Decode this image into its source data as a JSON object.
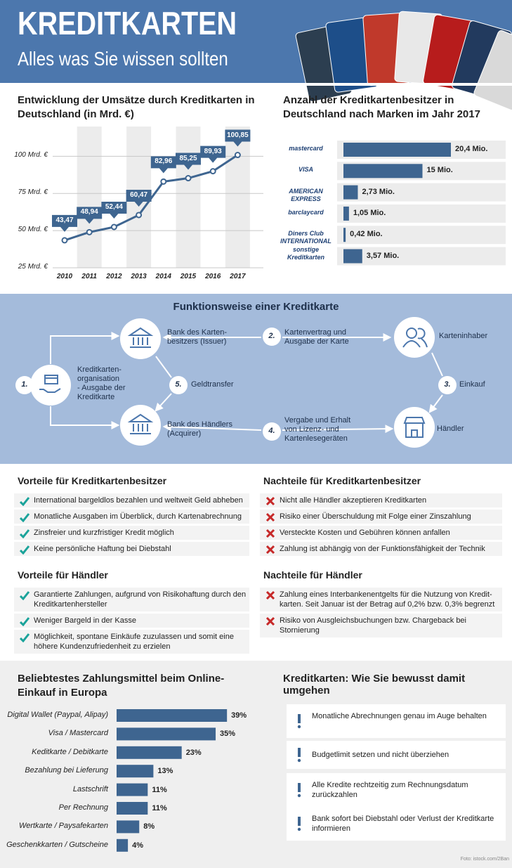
{
  "header": {
    "title": "KREDITKARTEN",
    "subtitle": "Alles was Sie wissen sollten"
  },
  "chart_data": [
    {
      "type": "line",
      "title": "Entwicklung der Umsätze durch Kreditkarten in Deutschland (in Mrd. €)",
      "categories": [
        "2010",
        "2011",
        "2012",
        "2013",
        "2014",
        "2015",
        "2016",
        "2017"
      ],
      "values": [
        43.47,
        48.94,
        52.44,
        60.47,
        82.96,
        85.25,
        89.93,
        100.85
      ],
      "value_labels": [
        "43,47",
        "48,94",
        "52,44",
        "60,47",
        "82,96",
        "85,25",
        "89,93",
        "100,85"
      ],
      "color": "#3e6590",
      "ylim": [
        25,
        120
      ],
      "yticks": [
        {
          "value": 25,
          "label": "25 Mrd. €"
        },
        {
          "value": 50,
          "label": "50 Mrd. €"
        },
        {
          "value": 75,
          "label": "75 Mrd. €"
        },
        {
          "value": 100,
          "label": "100 Mrd. €"
        }
      ],
      "grid": true
    },
    {
      "type": "hbar",
      "title": "Anzahl der Kreditkartenbesitzer in Deutschland nach Marken im Jahr 2017",
      "categories": [
        "mastercard",
        "VISA",
        "AMERICAN EXPRESS",
        "barclaycard",
        "Diners Club INTERNATIONAL",
        "sonstige Kreditkarten"
      ],
      "values": [
        20.4,
        15,
        2.73,
        1.05,
        0.42,
        3.57
      ],
      "value_labels": [
        "20,4 Mio.",
        "15 Mio.",
        "2,73 Mio.",
        "1,05 Mio.",
        "0,42 Mio.",
        "3,57 Mio."
      ],
      "color": "#3e6590",
      "xlim": [
        0,
        32
      ]
    },
    {
      "type": "hbar",
      "title": "Beliebtestes Zahlungsmittel beim Online-Einkauf in Europa",
      "categories": [
        "Digital Wallet (Paypal, Alipay)",
        "Visa / Mastercard",
        "Keditkarte / Debitkarte",
        "Bezahlung bei Lieferung",
        "Lastschrift",
        "Per Rechnung",
        "Wertkarte / Paysafekarten",
        "Geschenkkarten / Gutscheine"
      ],
      "values": [
        39,
        35,
        23,
        13,
        11,
        11,
        8,
        4
      ],
      "value_labels": [
        "39%",
        "35%",
        "23%",
        "13%",
        "11%",
        "11%",
        "8%",
        "4%"
      ],
      "color": "#3e6590",
      "xlim": [
        0,
        50
      ]
    }
  ],
  "process": {
    "title": "Funktionsweise einer Kreditkarte",
    "nodes": [
      {
        "lines": [
          "Bank des Karten-",
          "besitzers (Issuer)"
        ]
      },
      {
        "lines": [
          "Karteninhaber"
        ]
      },
      {
        "lines": [
          "Bank des Händlers",
          "(Acquirer)"
        ]
      },
      {
        "lines": [
          "Händler"
        ]
      },
      {
        "lines": [
          "Kreditkarten-",
          "organisation",
          "- Ausgabe der",
          "Kreditkarte"
        ]
      }
    ],
    "steps": [
      {
        "number": "1."
      },
      {
        "number": "2.",
        "lines": [
          "Kartenvertrag und",
          "Ausgabe der Karte"
        ]
      },
      {
        "number": "3.",
        "lines": [
          "Einkauf"
        ]
      },
      {
        "number": "4.",
        "lines": [
          "Vergabe und Erhalt",
          "von Lizenz- und",
          "Kartenlesegeräten"
        ]
      },
      {
        "number": "5.",
        "lines": [
          "Geldtransfer"
        ]
      }
    ]
  },
  "lists": [
    {
      "title": "Vorteile für Kreditkartenbesitzer",
      "items": [
        "International bargeldlos bezahlen und weltweit Geld abheben",
        "Monatliche Ausgaben im Überblick, durch Kartenabrechnung",
        "Zinsfreier und kurzfristiger Kredit möglich",
        "Keine persönliche Haftung bei Diebstahl"
      ]
    },
    {
      "title": "Nachteile für Kreditkartenbesitzer",
      "items": [
        "Nicht alle Händler akzeptieren Kreditkarten",
        "Risiko einer Überschuldung mit Folge einer Zinszahlung",
        "Versteckte Kosten und Gebühren können anfallen",
        "Zahlung ist abhängig von der Funktionsfähigkeit der Technik"
      ]
    },
    {
      "title": "Vorteile für Händler",
      "items": [
        "Garantierte Zahlungen, aufgrund von Risikohaftung durch den Kreditkartenhersteller",
        "Weniger Bargeld in der Kasse",
        "Möglichkeit, spontane Einkäufe zuzulassen und somit eine höhere Kundenzufriedenheit zu erzielen"
      ]
    },
    {
      "title": "Nachteile für Händler",
      "items": [
        "Zahlung eines Interbankenentgelts für die Nutzung von Kredit-karten. Seit Januar ist der Betrag auf 0,2% bzw. 0,3% begrenzt",
        "Risiko von Ausgleichsbuchungen bzw. Chargeback bei Stornierung"
      ]
    }
  ],
  "tips": {
    "title": "Kreditkarten: Wie Sie bewusst damit umgehen",
    "items": [
      "Monatliche Abrechnungen genau im Auge behalten",
      "Budgetlimit setzen und nicht überziehen",
      "Alle Kredite rechtzeitig zum Rechnungsdatum zurückzahlen",
      "Bank sofort bei Diebstahl oder Verlust der Kreditkarte informieren"
    ]
  },
  "credit": "Foto: istock.com/2Ban"
}
